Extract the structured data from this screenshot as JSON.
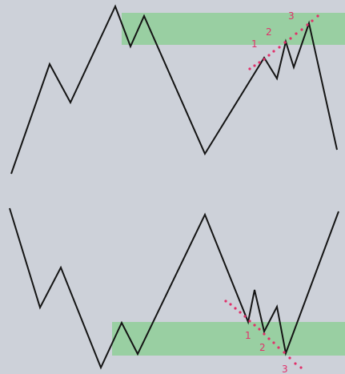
{
  "diagram": {
    "background": "#cdd1d9",
    "zone_color": "#8fcf98",
    "line_color": "#141414",
    "marker_color": "#e0306a",
    "top_pattern": {
      "zone": "resistance",
      "labels": [
        "1",
        "2",
        "3"
      ]
    },
    "bottom_pattern": {
      "zone": "support",
      "labels": [
        "1",
        "2",
        "3"
      ]
    }
  }
}
